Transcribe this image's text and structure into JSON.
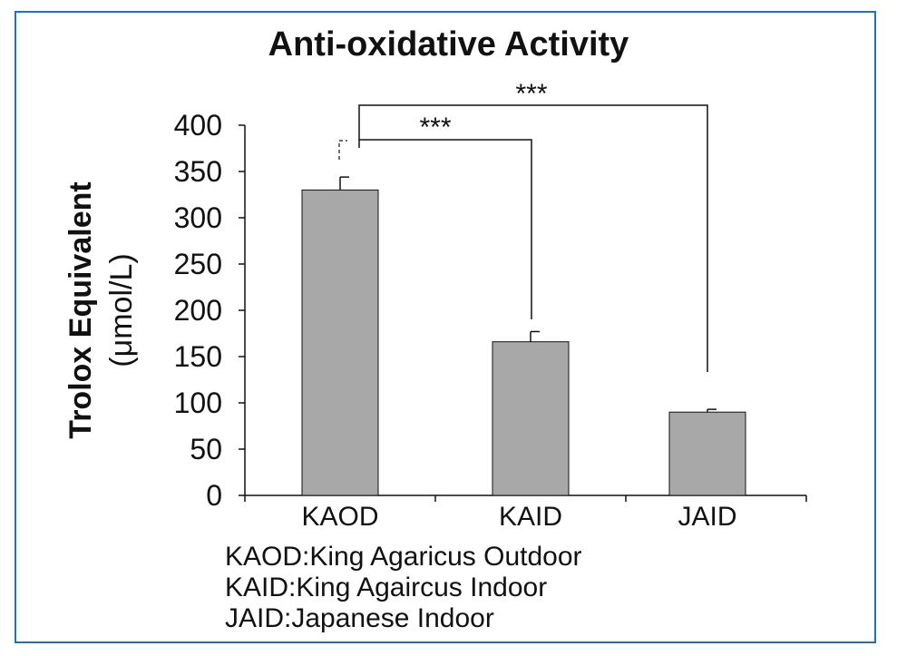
{
  "chart_data": {
    "type": "bar",
    "title": "Anti-oxidative Activity",
    "ylabel": "Trolox Equivalent\n(μmol/L)",
    "xlabel": "",
    "categories": [
      "KAOD",
      "KAID",
      "JAID"
    ],
    "values": [
      330,
      166,
      90
    ],
    "errors": [
      14,
      11,
      3
    ],
    "ylim": [
      0,
      400
    ],
    "yticks": [
      0,
      50,
      100,
      150,
      200,
      250,
      300,
      350,
      400
    ],
    "bar_color": "#a8a8a8",
    "significance": [
      {
        "from": "KAOD",
        "to": "KAID",
        "label": "***"
      },
      {
        "from": "KAOD",
        "to": "JAID",
        "label": "***"
      }
    ],
    "legend": [
      "KAOD:King Agaricus Outdoor",
      "KAID:King Agaircus Indoor",
      "JAID:Japanese Indoor"
    ]
  },
  "accent_color": "#1e73b8"
}
